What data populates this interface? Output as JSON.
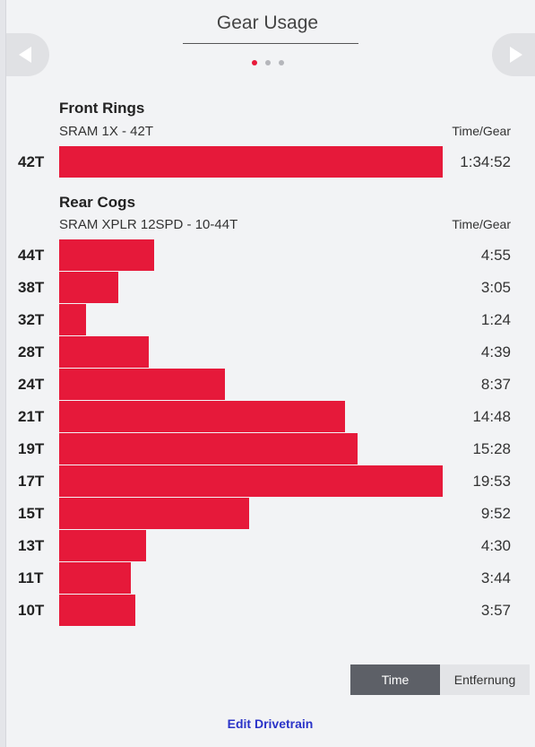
{
  "header": {
    "title": "Gear Usage"
  },
  "carousel": {
    "page_count": 3,
    "active_index": 0
  },
  "nav": {
    "prev_icon": "chevron-left-icon",
    "next_icon": "chevron-right-icon"
  },
  "front": {
    "title": "Front Rings",
    "subtitle": "SRAM 1X - 42T",
    "column_label": "Time/Gear",
    "gears": [
      {
        "label": "42T",
        "time": "1:34:52",
        "seconds": 5692
      }
    ]
  },
  "rear": {
    "title": "Rear Cogs",
    "subtitle": "SRAM XPLR 12SPD - 10-44T",
    "column_label": "Time/Gear",
    "gears": [
      {
        "label": "44T",
        "time": "4:55",
        "seconds": 295
      },
      {
        "label": "38T",
        "time": "3:05",
        "seconds": 185
      },
      {
        "label": "32T",
        "time": "1:24",
        "seconds": 84
      },
      {
        "label": "28T",
        "time": "4:39",
        "seconds": 279
      },
      {
        "label": "24T",
        "time": "8:37",
        "seconds": 517
      },
      {
        "label": "21T",
        "time": "14:48",
        "seconds": 888
      },
      {
        "label": "19T",
        "time": "15:28",
        "seconds": 928
      },
      {
        "label": "17T",
        "time": "19:53",
        "seconds": 1193
      },
      {
        "label": "15T",
        "time": "9:52",
        "seconds": 592
      },
      {
        "label": "13T",
        "time": "4:30",
        "seconds": 270
      },
      {
        "label": "11T",
        "time": "3:44",
        "seconds": 224
      },
      {
        "label": "10T",
        "time": "3:57",
        "seconds": 237
      }
    ]
  },
  "toggle": {
    "time_label": "Time",
    "distance_label": "Entfernung",
    "selected": "time"
  },
  "footer": {
    "edit_label": "Edit Drivetrain"
  },
  "colors": {
    "bar": "#e6193a",
    "active_dot": "#e8193a",
    "link": "#2a33c8"
  }
}
